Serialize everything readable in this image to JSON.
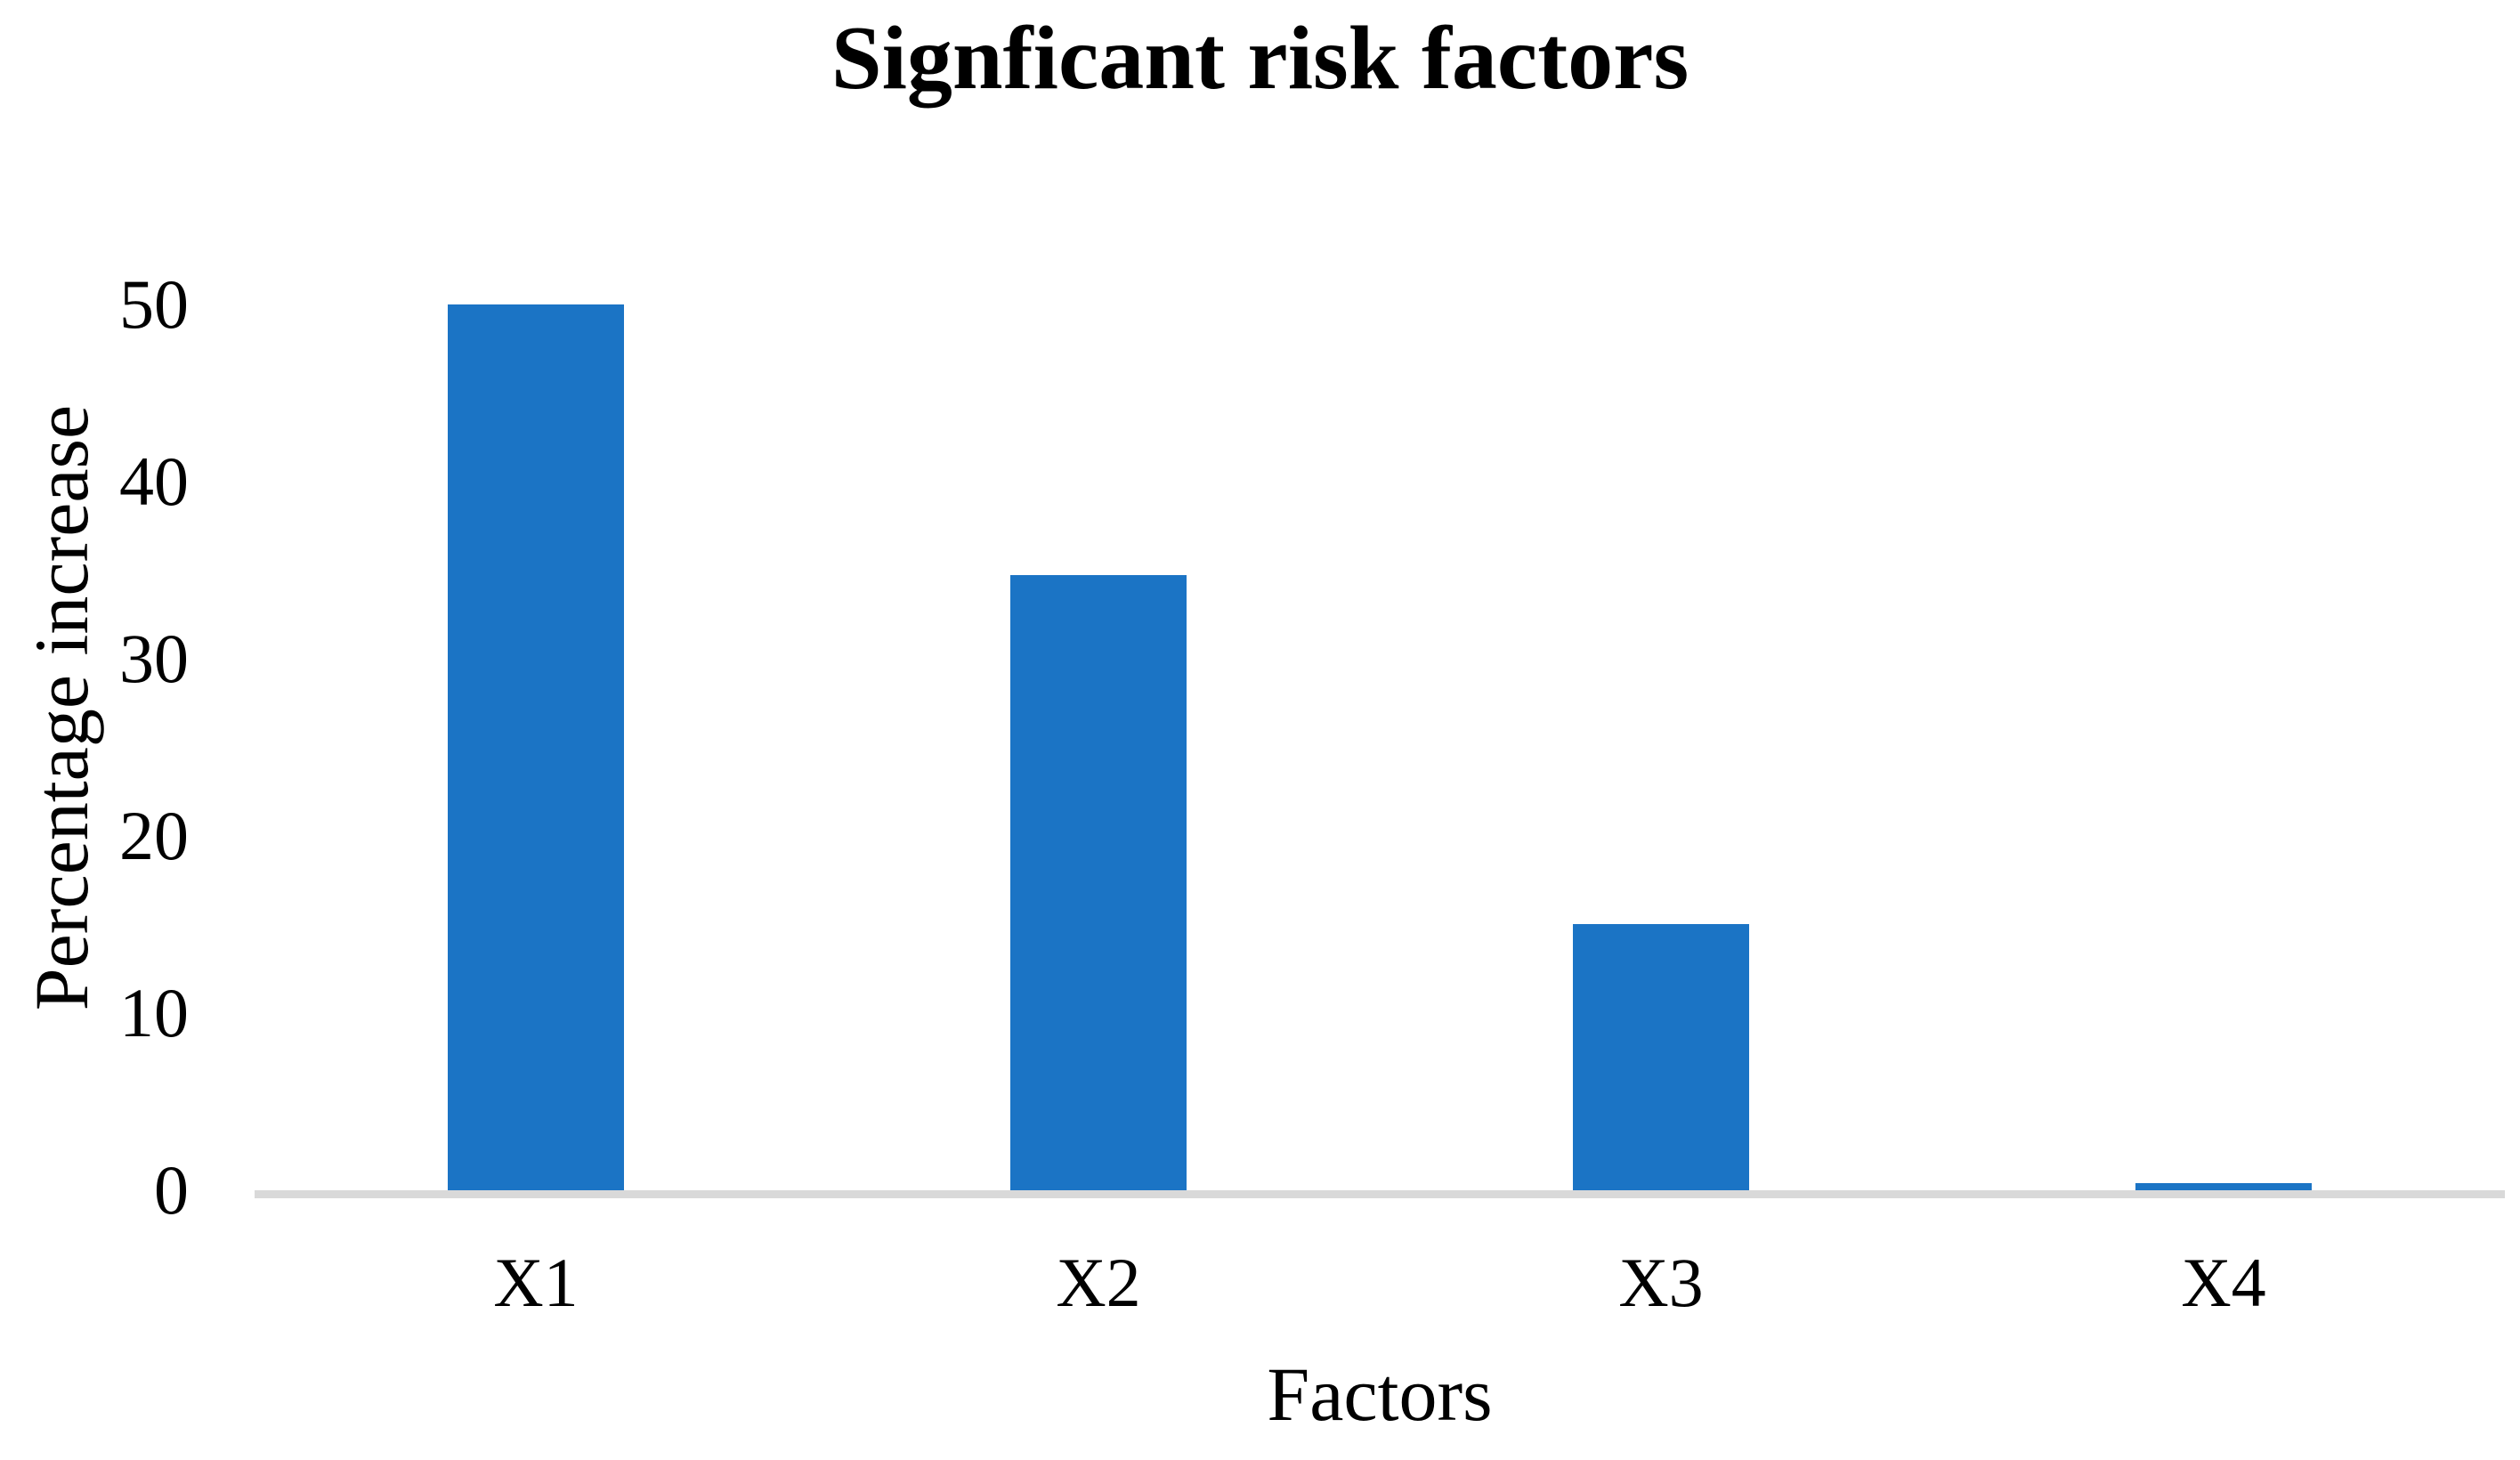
{
  "chart_data": {
    "type": "bar",
    "title": "Signficant risk factors",
    "xlabel": "Factors",
    "ylabel": "Percentage increase",
    "categories": [
      "X1",
      "X2",
      "X3",
      "X4"
    ],
    "values": [
      50,
      34.7,
      15,
      0.4
    ],
    "ylim": [
      0,
      50
    ],
    "yticks": [
      0,
      10,
      20,
      30,
      40,
      50
    ],
    "grid": false,
    "legend": false,
    "bar_color": "#1B74C5",
    "axis_line_color": "#D9D9D9",
    "text_color": "#000000",
    "background_color": "#FFFFFF"
  }
}
